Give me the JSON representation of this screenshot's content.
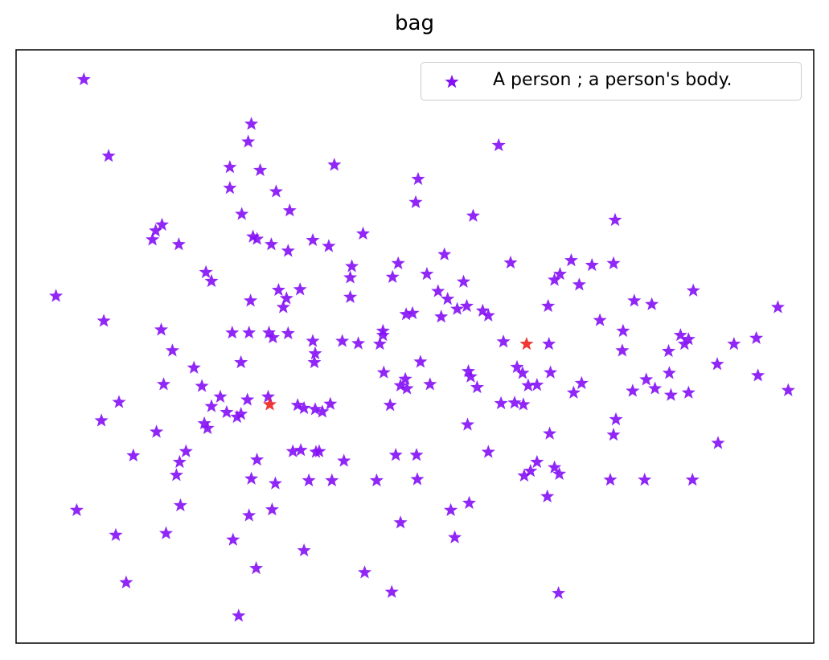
{
  "chart_data": {
    "type": "scatter",
    "title": "bag",
    "xlabel": "",
    "ylabel": "",
    "xlim": [
      0,
      100
    ],
    "ylim": [
      0,
      100
    ],
    "grid": false,
    "ticks": false,
    "legend_position": "top-right",
    "series": [
      {
        "name": "A person ; a person's body.",
        "marker": "star",
        "color": "#8410f5",
        "points": [
          [
            8.5,
            95.0
          ],
          [
            11.6,
            82.1
          ],
          [
            29.1,
            84.5
          ],
          [
            29.5,
            87.5
          ],
          [
            26.8,
            80.2
          ],
          [
            30.6,
            79.7
          ],
          [
            39.9,
            80.6
          ],
          [
            60.5,
            83.9
          ],
          [
            50.4,
            78.2
          ],
          [
            50.1,
            74.3
          ],
          [
            26.8,
            76.7
          ],
          [
            32.6,
            76.1
          ],
          [
            34.3,
            72.9
          ],
          [
            28.3,
            72.3
          ],
          [
            57.3,
            72.0
          ],
          [
            75.1,
            71.3
          ],
          [
            18.3,
            70.5
          ],
          [
            17.5,
            69.5
          ],
          [
            17.1,
            68.0
          ],
          [
            20.4,
            67.2
          ],
          [
            29.7,
            68.5
          ],
          [
            30.2,
            68.1
          ],
          [
            32.0,
            67.2
          ],
          [
            37.2,
            67.9
          ],
          [
            39.2,
            66.9
          ],
          [
            43.5,
            69.0
          ],
          [
            23.8,
            62.5
          ],
          [
            24.5,
            61.0
          ],
          [
            34.1,
            66.1
          ],
          [
            42.1,
            63.5
          ],
          [
            47.9,
            64.0
          ],
          [
            53.7,
            65.5
          ],
          [
            62.0,
            64.1
          ],
          [
            69.6,
            64.5
          ],
          [
            72.2,
            63.7
          ],
          [
            74.9,
            64.0
          ],
          [
            41.9,
            61.6
          ],
          [
            47.2,
            61.7
          ],
          [
            51.5,
            62.2
          ],
          [
            56.1,
            60.9
          ],
          [
            67.5,
            61.2
          ],
          [
            68.2,
            62.2
          ],
          [
            70.6,
            60.4
          ],
          [
            84.9,
            59.4
          ],
          [
            5.0,
            58.5
          ],
          [
            29.4,
            57.7
          ],
          [
            32.9,
            59.5
          ],
          [
            33.9,
            58.1
          ],
          [
            33.5,
            56.6
          ],
          [
            35.6,
            59.6
          ],
          [
            41.9,
            58.3
          ],
          [
            52.9,
            59.3
          ],
          [
            54.1,
            58.0
          ],
          [
            55.3,
            56.3
          ],
          [
            56.5,
            56.8
          ],
          [
            58.5,
            56.0
          ],
          [
            59.2,
            55.2
          ],
          [
            66.7,
            56.8
          ],
          [
            77.5,
            57.7
          ],
          [
            79.7,
            57.1
          ],
          [
            11.0,
            54.3
          ],
          [
            18.2,
            52.8
          ],
          [
            27.1,
            52.3
          ],
          [
            29.2,
            52.3
          ],
          [
            31.7,
            52.3
          ],
          [
            32.2,
            51.5
          ],
          [
            34.1,
            52.2
          ],
          [
            46.0,
            52.6
          ],
          [
            48.9,
            55.4
          ],
          [
            49.7,
            55.6
          ],
          [
            53.3,
            55.0
          ],
          [
            73.2,
            54.4
          ],
          [
            76.1,
            52.6
          ],
          [
            95.5,
            56.6
          ],
          [
            19.6,
            49.3
          ],
          [
            37.2,
            50.9
          ],
          [
            37.5,
            48.8
          ],
          [
            37.4,
            47.3
          ],
          [
            40.9,
            50.9
          ],
          [
            42.9,
            50.5
          ],
          [
            45.6,
            50.4
          ],
          [
            46.0,
            51.9
          ],
          [
            61.1,
            50.8
          ],
          [
            66.8,
            50.4
          ],
          [
            76.0,
            49.3
          ],
          [
            81.8,
            49.2
          ],
          [
            83.8,
            50.4
          ],
          [
            84.3,
            51.2
          ],
          [
            83.3,
            51.9
          ],
          [
            90.0,
            50.4
          ],
          [
            92.8,
            51.4
          ],
          [
            28.2,
            47.3
          ],
          [
            22.3,
            46.4
          ],
          [
            50.7,
            47.4
          ],
          [
            62.8,
            46.5
          ],
          [
            63.5,
            45.5
          ],
          [
            67.0,
            45.6
          ],
          [
            46.1,
            45.6
          ],
          [
            56.7,
            45.8
          ],
          [
            57.0,
            44.9
          ],
          [
            81.9,
            45.5
          ],
          [
            87.9,
            47.0
          ],
          [
            93.0,
            45.1
          ],
          [
            18.5,
            43.6
          ],
          [
            23.3,
            43.3
          ],
          [
            48.8,
            44.5
          ],
          [
            48.2,
            43.4
          ],
          [
            49.0,
            42.9
          ],
          [
            51.9,
            43.6
          ],
          [
            57.8,
            43.1
          ],
          [
            64.2,
            43.4
          ],
          [
            65.3,
            43.5
          ],
          [
            70.9,
            43.8
          ],
          [
            80.1,
            42.9
          ],
          [
            77.3,
            42.5
          ],
          [
            79.0,
            44.4
          ],
          [
            12.9,
            40.6
          ],
          [
            25.6,
            41.5
          ],
          [
            29.0,
            41.0
          ],
          [
            31.6,
            41.5
          ],
          [
            35.3,
            40.1
          ],
          [
            36.1,
            39.6
          ],
          [
            37.5,
            39.4
          ],
          [
            38.4,
            39.0
          ],
          [
            39.4,
            40.3
          ],
          [
            46.9,
            40.1
          ],
          [
            60.8,
            40.4
          ],
          [
            62.5,
            40.5
          ],
          [
            63.6,
            40.2
          ],
          [
            69.9,
            42.2
          ],
          [
            82.1,
            41.8
          ],
          [
            84.3,
            42.2
          ],
          [
            96.8,
            42.6
          ],
          [
            24.5,
            39.9
          ],
          [
            26.4,
            38.9
          ],
          [
            28.2,
            38.6
          ],
          [
            10.7,
            37.5
          ],
          [
            23.6,
            37.0
          ],
          [
            27.7,
            38.1
          ],
          [
            56.6,
            36.8
          ],
          [
            75.2,
            37.7
          ],
          [
            74.9,
            35.1
          ],
          [
            66.9,
            35.3
          ],
          [
            17.6,
            35.6
          ],
          [
            21.3,
            32.3
          ],
          [
            34.7,
            32.3
          ],
          [
            35.7,
            32.5
          ],
          [
            37.6,
            32.2
          ],
          [
            38.0,
            32.3
          ],
          [
            59.2,
            32.2
          ],
          [
            88.0,
            33.7
          ],
          [
            14.7,
            31.6
          ],
          [
            30.2,
            30.9
          ],
          [
            41.1,
            30.7
          ],
          [
            47.6,
            31.7
          ],
          [
            50.2,
            31.7
          ],
          [
            65.3,
            30.5
          ],
          [
            67.5,
            29.6
          ],
          [
            68.1,
            28.5
          ],
          [
            20.5,
            30.5
          ],
          [
            20.1,
            28.3
          ],
          [
            64.5,
            29.0
          ],
          [
            63.7,
            28.2
          ],
          [
            29.5,
            27.7
          ],
          [
            32.5,
            26.9
          ],
          [
            36.7,
            27.4
          ],
          [
            39.6,
            27.4
          ],
          [
            45.2,
            27.4
          ],
          [
            50.3,
            27.6
          ],
          [
            74.5,
            27.5
          ],
          [
            78.8,
            27.5
          ],
          [
            84.8,
            27.5
          ],
          [
            20.6,
            23.2
          ],
          [
            32.1,
            22.5
          ],
          [
            29.2,
            21.5
          ],
          [
            54.5,
            22.4
          ],
          [
            56.8,
            23.6
          ],
          [
            66.6,
            24.7
          ],
          [
            7.6,
            22.4
          ],
          [
            12.5,
            18.2
          ],
          [
            18.8,
            18.5
          ],
          [
            27.2,
            17.4
          ],
          [
            48.2,
            20.3
          ],
          [
            55.0,
            17.8
          ],
          [
            36.1,
            15.6
          ],
          [
            30.1,
            12.6
          ],
          [
            43.7,
            11.9
          ],
          [
            13.8,
            10.2
          ],
          [
            47.1,
            8.6
          ],
          [
            68.0,
            8.4
          ],
          [
            27.9,
            4.6
          ],
          [
            24.0,
            36.2
          ]
        ],
        "sizes": [
          1,
          1,
          1,
          1,
          1,
          1,
          1,
          1,
          1,
          1,
          1,
          1,
          1,
          1,
          1,
          1,
          1,
          1,
          1,
          1,
          1,
          1,
          1,
          1,
          1,
          1,
          1,
          1,
          1,
          1,
          1,
          1,
          1,
          1,
          1,
          1,
          1,
          1,
          1,
          1,
          1,
          1,
          1,
          1,
          1,
          1,
          1,
          1,
          1,
          1,
          1,
          1,
          1,
          1,
          1,
          1,
          1,
          1,
          1,
          1,
          1,
          1,
          1,
          1,
          1,
          1,
          1,
          1,
          1,
          1,
          1,
          1,
          1,
          1,
          1,
          1,
          1,
          1,
          1,
          1,
          1,
          1,
          1,
          1,
          1,
          1,
          1,
          1,
          1,
          1,
          1,
          1,
          1,
          1,
          1,
          1,
          1,
          1,
          1,
          1,
          1,
          1,
          1,
          1,
          1,
          1,
          1,
          1,
          1,
          1,
          1,
          1,
          1,
          1,
          1,
          1,
          1,
          1,
          1,
          1,
          1,
          1,
          1,
          1,
          1,
          1,
          1,
          1,
          1,
          1,
          1,
          1,
          1,
          1,
          1,
          1,
          1,
          1,
          1,
          1,
          1,
          1,
          1,
          1,
          1,
          1,
          1,
          1,
          1,
          1,
          1,
          1,
          1,
          1,
          1,
          1,
          1,
          1,
          1,
          1,
          1,
          1,
          1,
          1,
          1,
          1,
          1,
          1,
          1,
          1,
          1,
          1,
          1,
          1,
          1,
          1,
          1,
          1,
          1,
          1,
          1,
          1,
          1,
          1,
          1,
          1,
          1,
          1,
          1,
          1,
          1,
          1,
          1,
          1,
          2.4
        ]
      },
      {
        "name": "",
        "marker": "star",
        "color": "#f02020",
        "points": [
          [
            64.0,
            50.4
          ],
          [
            31.8,
            40.2
          ]
        ]
      }
    ]
  }
}
